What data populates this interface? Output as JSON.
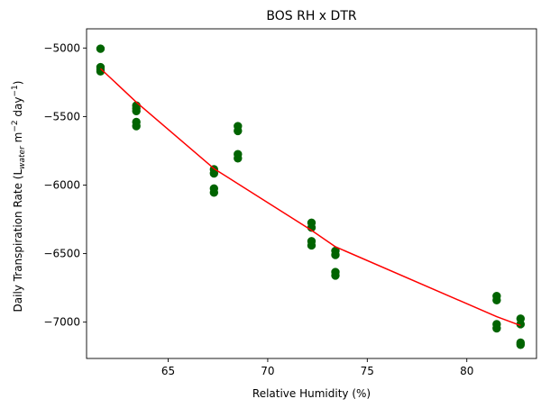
{
  "chart_data": {
    "type": "scatter",
    "title": "BOS RH x DTR",
    "xlabel": "Relative Humidity (%)",
    "ylabel": {
      "prefix": "Daily Transpiration Rate (L",
      "sub": "water",
      "mid1": " m",
      "sup1": "−2",
      "mid2": " day",
      "sup2": "−1",
      "suffix": ")"
    },
    "xlim": [
      60.9,
      83.5
    ],
    "ylim": [
      -7265,
      -4860
    ],
    "xticks": [
      65,
      70,
      75,
      80
    ],
    "xtick_labels": [
      "65",
      "70",
      "75",
      "80"
    ],
    "yticks": [
      -5000,
      -5500,
      -6000,
      -6500,
      -7000
    ],
    "ytick_labels": [
      "−5000",
      "−5500",
      "−6000",
      "−6500",
      "−7000"
    ],
    "grid": false,
    "colors": {
      "points": "#006400",
      "trend": "#ff0000"
    },
    "series": [
      {
        "kind": "scatter",
        "points": [
          [
            61.6,
            -5005
          ],
          [
            61.6,
            -5140
          ],
          [
            61.6,
            -5155
          ],
          [
            61.6,
            -5170
          ],
          [
            63.4,
            -5420
          ],
          [
            63.4,
            -5440
          ],
          [
            63.4,
            -5460
          ],
          [
            63.4,
            -5540
          ],
          [
            63.4,
            -5570
          ],
          [
            67.3,
            -5885
          ],
          [
            67.3,
            -5915
          ],
          [
            67.3,
            -6025
          ],
          [
            67.3,
            -6055
          ],
          [
            68.5,
            -5570
          ],
          [
            68.5,
            -5605
          ],
          [
            68.5,
            -5775
          ],
          [
            68.5,
            -5805
          ],
          [
            72.2,
            -6275
          ],
          [
            72.2,
            -6310
          ],
          [
            72.2,
            -6410
          ],
          [
            72.2,
            -6440
          ],
          [
            73.4,
            -6480
          ],
          [
            73.4,
            -6510
          ],
          [
            73.4,
            -6635
          ],
          [
            73.4,
            -6660
          ],
          [
            81.5,
            -6810
          ],
          [
            81.5,
            -6840
          ],
          [
            81.5,
            -7015
          ],
          [
            81.5,
            -7045
          ],
          [
            82.7,
            -6975
          ],
          [
            82.7,
            -7015
          ],
          [
            82.7,
            -7150
          ],
          [
            82.7,
            -7165
          ]
        ]
      },
      {
        "kind": "line",
        "points": [
          [
            61.6,
            -5150
          ],
          [
            63.4,
            -5395
          ],
          [
            67.3,
            -5880
          ],
          [
            68.5,
            -5990
          ],
          [
            72.2,
            -6330
          ],
          [
            73.4,
            -6450
          ],
          [
            81.5,
            -6960
          ],
          [
            82.7,
            -7025
          ]
        ]
      }
    ]
  }
}
